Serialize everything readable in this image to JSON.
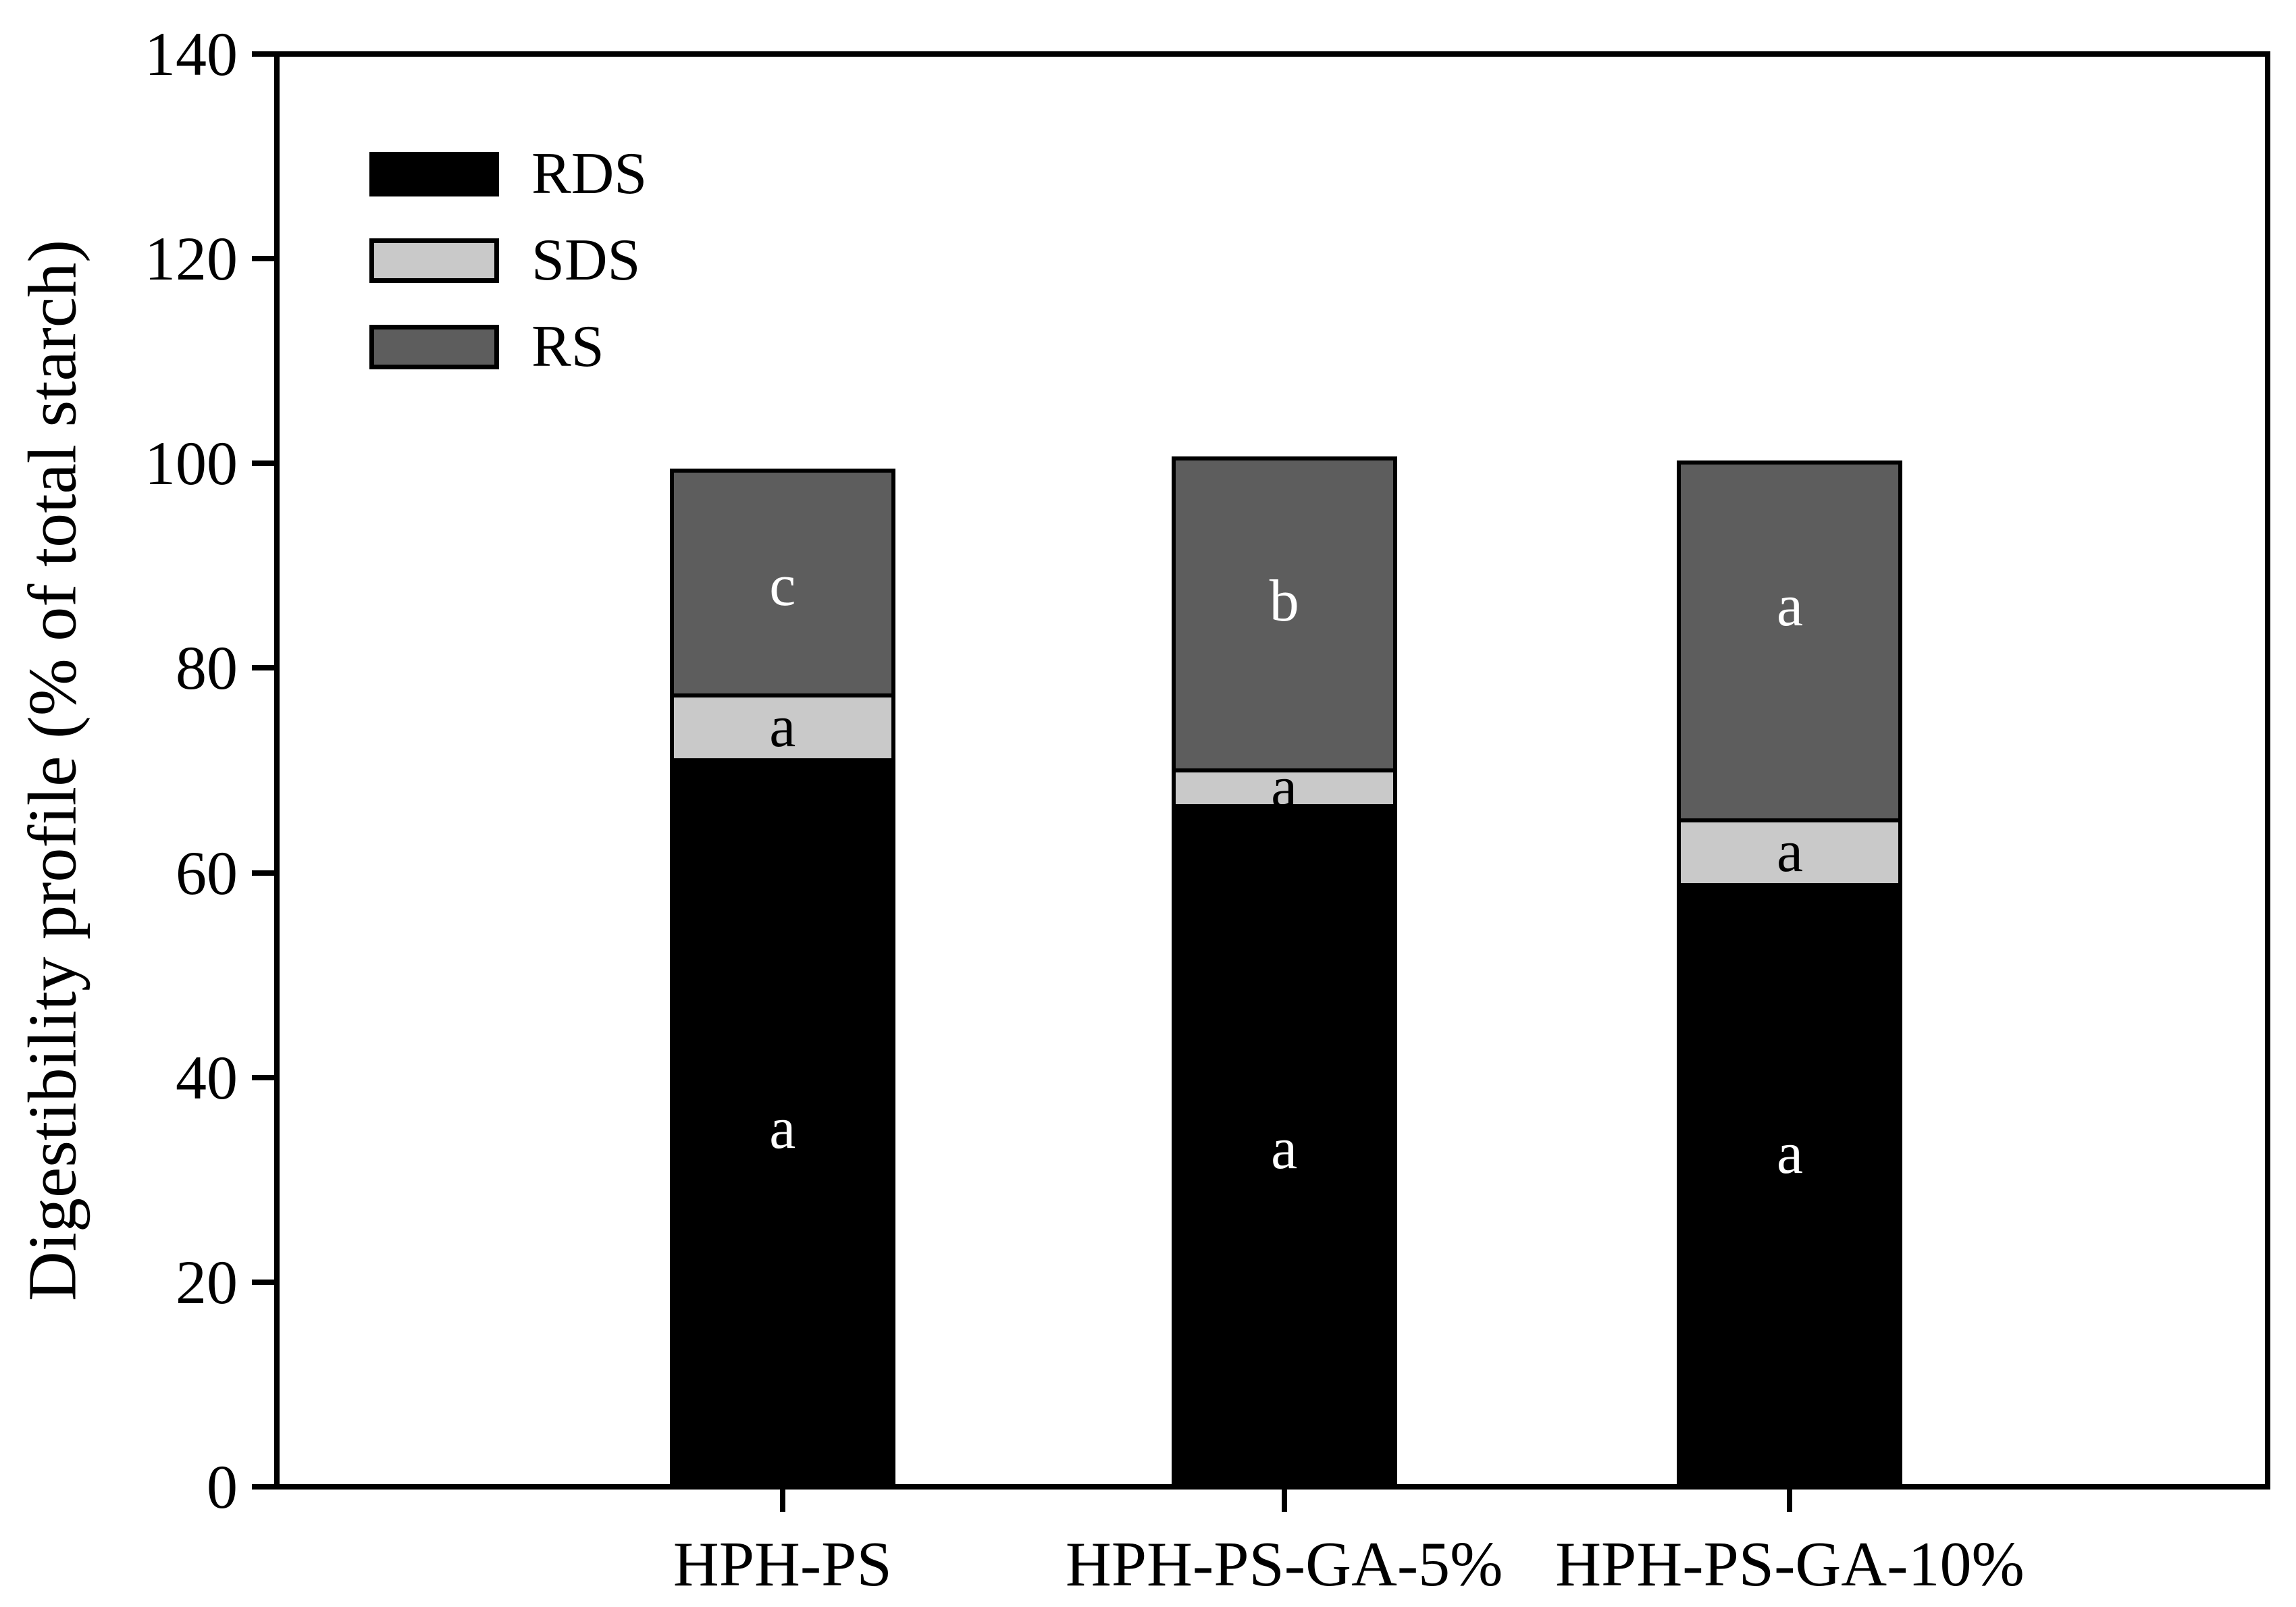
{
  "figure": {
    "ylabel": "Digestibility profile (% of total starch)"
  },
  "chart_data": {
    "type": "bar",
    "stacked": true,
    "title": "",
    "xlabel": "",
    "ylabel": "Digestibility profile (% of total starch)",
    "ylim": [
      0,
      140
    ],
    "ytick_step": 20,
    "yticks": [
      0,
      20,
      40,
      60,
      80,
      100,
      120,
      140
    ],
    "grid": false,
    "legend_position": "top-left",
    "categories": [
      "HPH-PS",
      "HPH-PS-GA-5%",
      "HPH-PS-GA-10%"
    ],
    "series": [
      {
        "name": "RDS",
        "color": "#000000",
        "values": [
          71.0,
          66.5,
          58.8
        ],
        "letter_labels": [
          "a",
          "a",
          "a"
        ],
        "letter_color": "#ffffff",
        "letter_y": [
          35.0,
          33.0,
          32.5
        ]
      },
      {
        "name": "SDS",
        "color": "#c9c9c9",
        "values": [
          6.3,
          3.5,
          6.3
        ],
        "letter_labels": [
          "a",
          "a",
          "a"
        ],
        "letter_color": "#000000",
        "letter_y": [
          74.2,
          68.3,
          62.0
        ]
      },
      {
        "name": "RS",
        "color": "#5d5d5d",
        "values": [
          22.0,
          30.5,
          35.0
        ],
        "letter_labels": [
          "c",
          "b",
          "a"
        ],
        "letter_color": "#ffffff",
        "letter_y": [
          88.0,
          86.5,
          86.0
        ]
      }
    ],
    "stack_totals": [
      99.3,
      100.5,
      100.1
    ]
  }
}
